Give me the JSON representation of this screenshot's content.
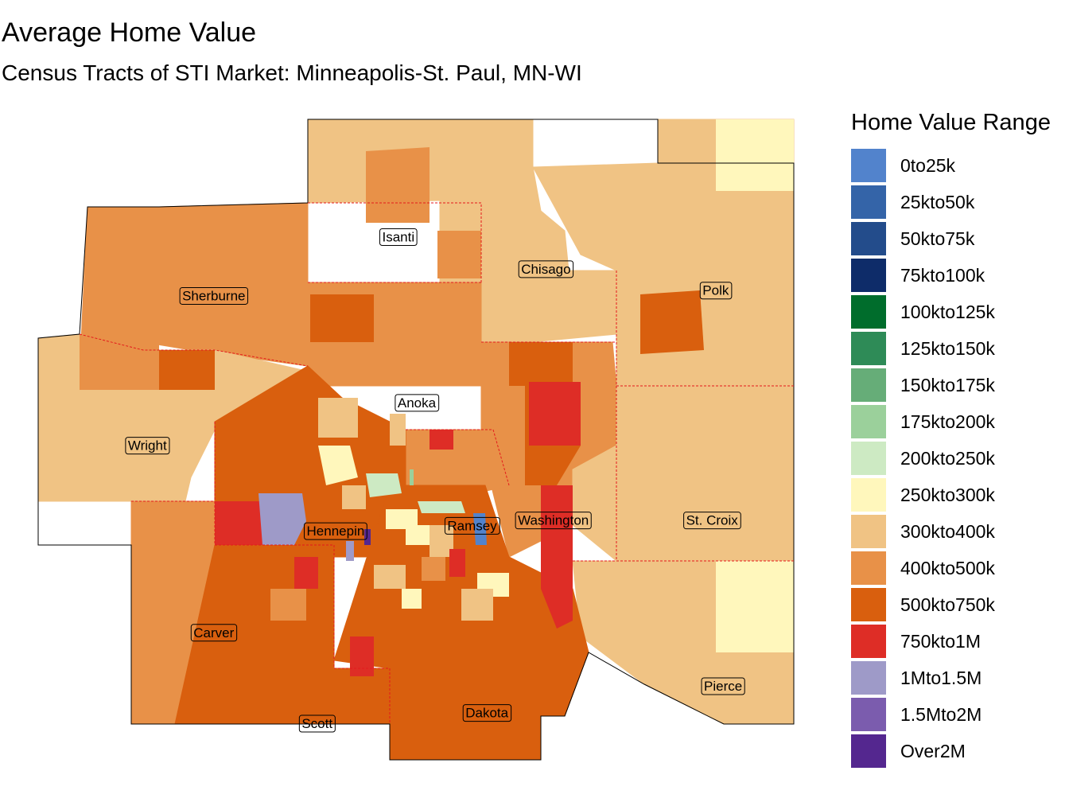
{
  "title": "Average Home Value",
  "subtitle": "Census Tracts of STI Market: Minneapolis-St. Paul, MN-WI",
  "legend": {
    "title": "Home Value Range",
    "items": [
      {
        "label": "0to25k",
        "color": "#5283cc"
      },
      {
        "label": "25kto50k",
        "color": "#3464a8"
      },
      {
        "label": "50kto75k",
        "color": "#234c8b"
      },
      {
        "label": "75kto100k",
        "color": "#0e2c69"
      },
      {
        "label": "100kto125k",
        "color": "#006d2c"
      },
      {
        "label": "125kto150k",
        "color": "#2e8b57"
      },
      {
        "label": "150kto175k",
        "color": "#66ad78"
      },
      {
        "label": "175kto200k",
        "color": "#9bd09b"
      },
      {
        "label": "200kto250k",
        "color": "#cdeac3"
      },
      {
        "label": "250kto300k",
        "color": "#fff7bc"
      },
      {
        "label": "300kto400k",
        "color": "#f0c384"
      },
      {
        "label": "400kto500k",
        "color": "#e89148"
      },
      {
        "label": "500kto750k",
        "color": "#d95f0e"
      },
      {
        "label": "750kto1M",
        "color": "#de2d26"
      },
      {
        "label": "1Mto1.5M",
        "color": "#9e9ac8"
      },
      {
        "label": "1.5Mto2M",
        "color": "#7b5cae"
      },
      {
        "label": "Over2M",
        "color": "#54278f"
      }
    ]
  },
  "counties": [
    {
      "name": "Isanti",
      "lon": -93.3,
      "lat": 45.56
    },
    {
      "name": "Chisago",
      "lon": -92.9,
      "lat": 45.5
    },
    {
      "name": "Polk",
      "lon": -92.44,
      "lat": 45.46
    },
    {
      "name": "Sherburne",
      "lon": -93.8,
      "lat": 45.45
    },
    {
      "name": "Anoka",
      "lon": -93.25,
      "lat": 45.25
    },
    {
      "name": "Wright",
      "lon": -93.98,
      "lat": 45.17
    },
    {
      "name": "Washington",
      "lon": -92.88,
      "lat": 45.03
    },
    {
      "name": "St. Croix",
      "lon": -92.45,
      "lat": 45.03
    },
    {
      "name": "Ramsey",
      "lon": -93.1,
      "lat": 45.02
    },
    {
      "name": "Hennepin",
      "lon": -93.47,
      "lat": 45.01
    },
    {
      "name": "Carver",
      "lon": -93.8,
      "lat": 44.82
    },
    {
      "name": "Pierce",
      "lon": -92.42,
      "lat": 44.72
    },
    {
      "name": "Dakota",
      "lon": -93.06,
      "lat": 44.67
    },
    {
      "name": "Scott",
      "lon": -93.52,
      "lat": 44.65
    }
  ]
}
